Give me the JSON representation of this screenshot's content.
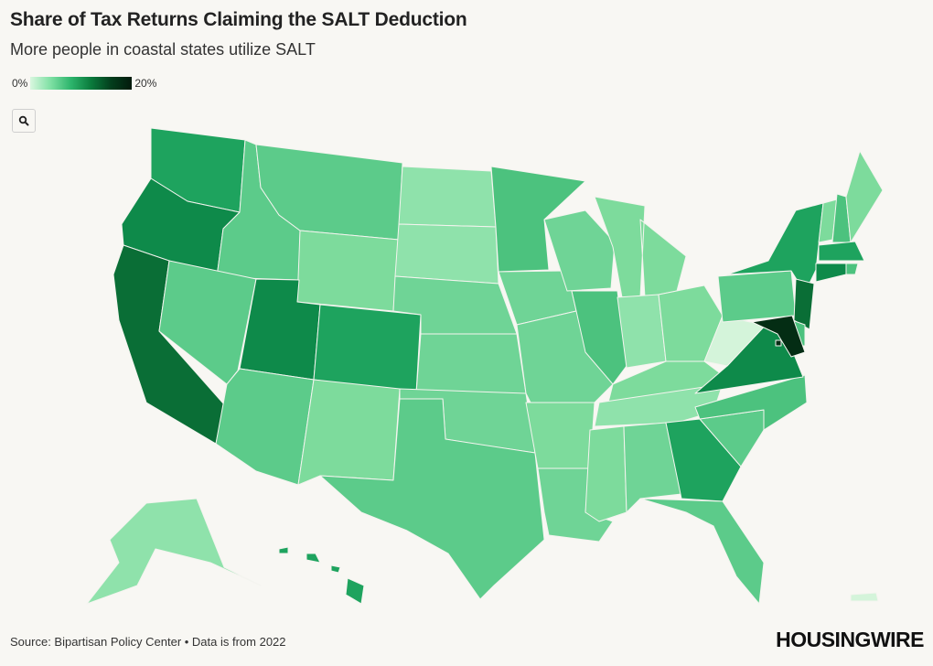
{
  "title": "Share of Tax Returns Claiming the SALT Deduction",
  "subtitle": "More people in coastal states utilize SALT",
  "legend": {
    "min_label": "0%",
    "max_label": "20%",
    "gradient": [
      "#d9f7df",
      "#2db56c",
      "#021a0c"
    ]
  },
  "zoom_icon": "search-icon",
  "source": "Source: Bipartisan Policy Center • Data is from 2022",
  "brand": "HOUSINGWIRE",
  "colors": {
    "c1": "#d4f4da",
    "c2": "#8fe2ab",
    "c3": "#7ddb9c",
    "c4": "#6fd496",
    "c5": "#5ccb8a",
    "c6": "#4cc27e",
    "c7": "#1ea35e",
    "c8": "#0e8a4a",
    "c9": "#0a6e36",
    "c10": "#042d14"
  },
  "states": [
    {
      "code": "WA",
      "color": "#1ea35e"
    },
    {
      "code": "OR",
      "color": "#0e8a4a"
    },
    {
      "code": "CA",
      "color": "#0a6e36"
    },
    {
      "code": "ID",
      "color": "#5ccb8a"
    },
    {
      "code": "NV",
      "color": "#5ccb8a"
    },
    {
      "code": "MT",
      "color": "#5ccb8a"
    },
    {
      "code": "WY",
      "color": "#7ddb9c"
    },
    {
      "code": "UT",
      "color": "#0e8a4a"
    },
    {
      "code": "AZ",
      "color": "#5ccb8a"
    },
    {
      "code": "CO",
      "color": "#1ea35e"
    },
    {
      "code": "NM",
      "color": "#7ddb9c"
    },
    {
      "code": "ND",
      "color": "#8fe2ab"
    },
    {
      "code": "SD",
      "color": "#8fe2ab"
    },
    {
      "code": "NE",
      "color": "#6fd496"
    },
    {
      "code": "KS",
      "color": "#6fd496"
    },
    {
      "code": "OK",
      "color": "#6fd496"
    },
    {
      "code": "TX",
      "color": "#5ccb8a"
    },
    {
      "code": "MN",
      "color": "#4cc27e"
    },
    {
      "code": "IA",
      "color": "#6fd496"
    },
    {
      "code": "MO",
      "color": "#6fd496"
    },
    {
      "code": "AR",
      "color": "#7ddb9c"
    },
    {
      "code": "LA",
      "color": "#6fd496"
    },
    {
      "code": "WI",
      "color": "#6fd496"
    },
    {
      "code": "IL",
      "color": "#4cc27e"
    },
    {
      "code": "MI",
      "color": "#7ddb9c"
    },
    {
      "code": "IN",
      "color": "#8fe2ab"
    },
    {
      "code": "OH",
      "color": "#7ddb9c"
    },
    {
      "code": "KY",
      "color": "#7ddb9c"
    },
    {
      "code": "TN",
      "color": "#8fe2ab"
    },
    {
      "code": "MS",
      "color": "#7ddb9c"
    },
    {
      "code": "AL",
      "color": "#6fd496"
    },
    {
      "code": "GA",
      "color": "#1ea35e"
    },
    {
      "code": "FL",
      "color": "#5ccb8a"
    },
    {
      "code": "SC",
      "color": "#5ccb8a"
    },
    {
      "code": "NC",
      "color": "#4cc27e"
    },
    {
      "code": "VA",
      "color": "#0e8a4a"
    },
    {
      "code": "WV",
      "color": "#d4f4da"
    },
    {
      "code": "PA",
      "color": "#5ccb8a"
    },
    {
      "code": "NY",
      "color": "#1ea35e"
    },
    {
      "code": "VT",
      "color": "#7ddb9c"
    },
    {
      "code": "NH",
      "color": "#4cc27e"
    },
    {
      "code": "ME",
      "color": "#7ddb9c"
    },
    {
      "code": "MA",
      "color": "#1ea35e"
    },
    {
      "code": "RI",
      "color": "#4cc27e"
    },
    {
      "code": "CT",
      "color": "#0e8a4a"
    },
    {
      "code": "NJ",
      "color": "#0a6e36"
    },
    {
      "code": "DE",
      "color": "#4cc27e"
    },
    {
      "code": "MD",
      "color": "#042d14"
    },
    {
      "code": "DC",
      "color": "#042d14"
    },
    {
      "code": "AK",
      "color": "#8fe2ab"
    },
    {
      "code": "HI",
      "color": "#1ea35e"
    },
    {
      "code": "PR",
      "color": "#d4f4da"
    }
  ]
}
